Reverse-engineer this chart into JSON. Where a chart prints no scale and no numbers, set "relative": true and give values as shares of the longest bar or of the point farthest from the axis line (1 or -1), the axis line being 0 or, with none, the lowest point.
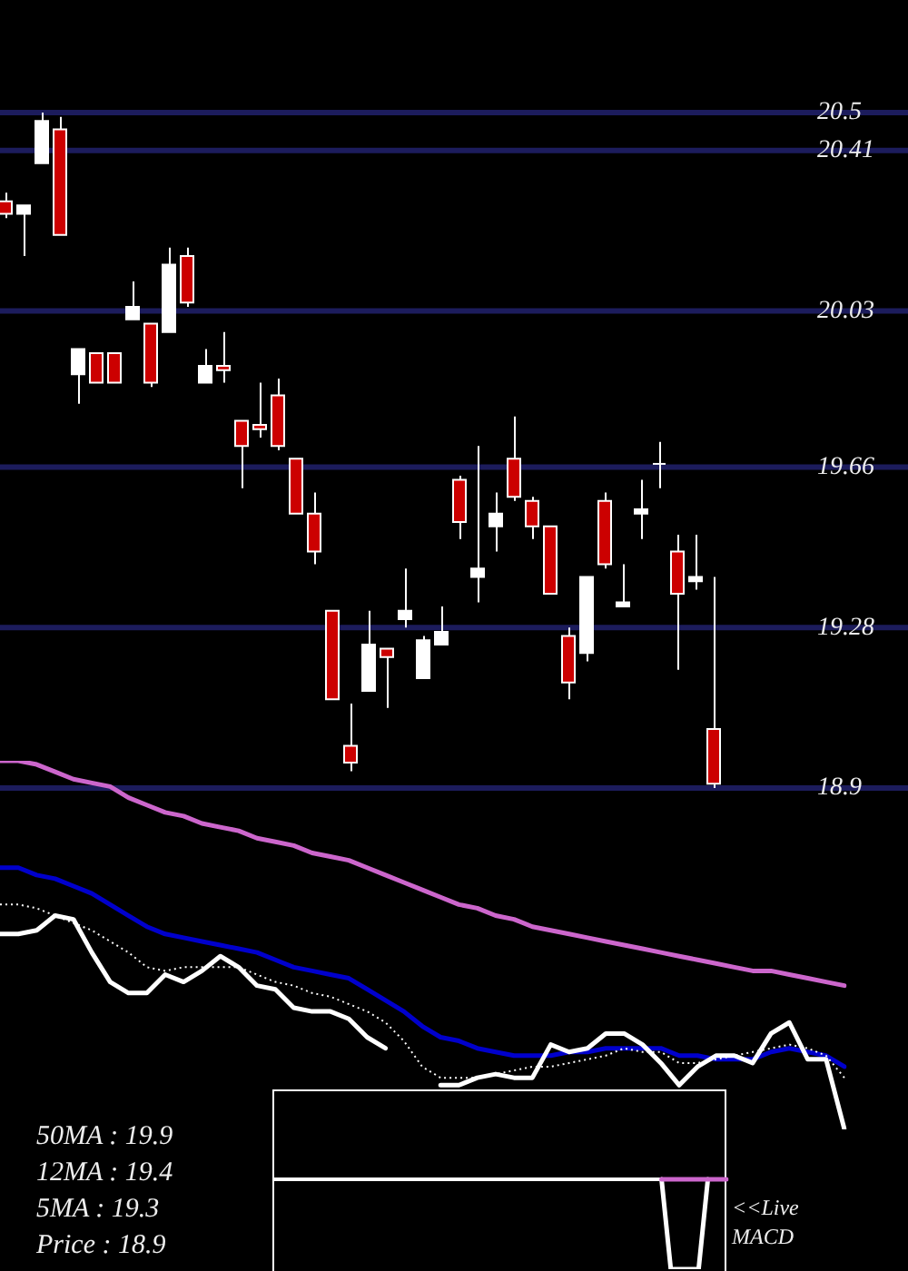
{
  "chart_data": [
    {
      "type": "candlestick",
      "categories": [
        null,
        null,
        null,
        null,
        null,
        null,
        null,
        null,
        null,
        null,
        null,
        null,
        null,
        null,
        null,
        null,
        null,
        null,
        null,
        null,
        null,
        null,
        null,
        null,
        null,
        null,
        null,
        null,
        null,
        null,
        null,
        null,
        null,
        null,
        null,
        null,
        null,
        null,
        null,
        null
      ],
      "ohlc": [
        [
          20.29,
          20.31,
          20.25,
          20.26
        ],
        [
          20.26,
          20.28,
          20.16,
          20.28
        ],
        [
          20.38,
          20.5,
          20.38,
          20.48
        ],
        [
          20.46,
          20.49,
          20.21,
          20.21
        ],
        [
          19.88,
          19.94,
          19.81,
          19.94
        ],
        [
          19.93,
          19.93,
          19.86,
          19.86
        ],
        [
          19.93,
          19.93,
          19.86,
          19.86
        ],
        [
          20.01,
          20.1,
          20.01,
          20.04
        ],
        [
          20.0,
          20.0,
          19.85,
          19.86
        ],
        [
          19.98,
          20.18,
          19.98,
          20.14
        ],
        [
          20.16,
          20.18,
          20.04,
          20.05
        ],
        [
          19.86,
          19.94,
          19.86,
          19.9
        ],
        [
          19.9,
          19.98,
          19.86,
          19.89
        ],
        [
          19.77,
          19.77,
          19.61,
          19.71
        ],
        [
          19.76,
          19.86,
          19.73,
          19.75
        ],
        [
          19.83,
          19.87,
          19.7,
          19.71
        ],
        [
          19.68,
          19.68,
          19.55,
          19.55
        ],
        [
          19.55,
          19.6,
          19.43,
          19.46
        ],
        [
          19.32,
          19.32,
          19.11,
          19.11
        ],
        [
          19.0,
          19.1,
          18.94,
          18.96
        ],
        [
          19.13,
          19.32,
          19.13,
          19.24
        ],
        [
          19.23,
          19.23,
          19.09,
          19.21
        ],
        [
          19.3,
          19.42,
          19.28,
          19.32
        ],
        [
          19.16,
          19.26,
          19.16,
          19.25
        ],
        [
          19.24,
          19.33,
          19.24,
          19.27
        ],
        [
          19.63,
          19.64,
          19.49,
          19.53
        ],
        [
          19.4,
          19.71,
          19.34,
          19.42
        ],
        [
          19.52,
          19.6,
          19.46,
          19.55
        ],
        [
          19.68,
          19.78,
          19.58,
          19.59
        ],
        [
          19.58,
          19.59,
          19.49,
          19.52
        ],
        [
          19.52,
          19.52,
          19.36,
          19.36
        ],
        [
          19.26,
          19.28,
          19.11,
          19.15
        ],
        [
          19.22,
          19.4,
          19.2,
          19.4
        ],
        [
          19.58,
          19.6,
          19.42,
          19.43
        ],
        [
          19.33,
          19.43,
          19.33,
          19.34
        ],
        [
          19.55,
          19.63,
          19.49,
          19.56
        ],
        [
          19.67,
          19.72,
          19.61,
          19.67
        ],
        [
          19.46,
          19.5,
          19.18,
          19.36
        ],
        [
          19.39,
          19.5,
          19.37,
          19.4
        ],
        [
          19.04,
          19.4,
          18.9,
          18.91
        ]
      ],
      "color": "#ffffff",
      "colors": [
        "#cc0000",
        "#ffffff",
        "#ffffff",
        "#cc0000",
        "#ffffff",
        "#cc0000",
        "#cc0000",
        "#ffffff",
        "#cc0000",
        "#ffffff",
        "#cc0000",
        "#ffffff",
        "#cc0000",
        "#cc0000",
        "#cc0000",
        "#cc0000",
        "#cc0000",
        "#cc0000",
        "#cc0000",
        "#cc0000",
        "#ffffff",
        "#cc0000",
        "#ffffff",
        "#ffffff",
        "#ffffff",
        "#cc0000",
        "#ffffff",
        "#ffffff",
        "#cc0000",
        "#cc0000",
        "#cc0000",
        "#cc0000",
        "#ffffff",
        "#cc0000",
        "#ffffff",
        "#ffffff",
        "#ffffff",
        "#cc0000",
        "#ffffff",
        "#cc0000"
      ],
      "ylim": [
        18.9,
        20.5
      ],
      "yticks": [
        18.9,
        19.28,
        19.66,
        20.03,
        20.41,
        20.5
      ],
      "grid": "y",
      "tick_labels": "y"
    },
    {
      "type": "line",
      "relative": true,
      "categories": [
        null,
        null,
        null,
        null,
        null,
        null,
        null,
        null,
        null,
        null,
        null,
        null,
        null,
        null,
        null,
        null,
        null,
        null,
        null,
        null,
        null,
        null,
        null,
        null,
        null,
        null,
        null,
        null,
        null,
        null,
        null,
        null,
        null,
        null,
        null,
        null,
        null,
        null,
        null,
        null,
        null,
        null,
        null,
        null,
        null,
        null,
        null
      ],
      "series": [
        {
          "color": "#cc66cc",
          "values": [
            1.0,
            1.0,
            0.99,
            0.97,
            0.95,
            0.94,
            0.93,
            0.9,
            0.88,
            0.86,
            0.85,
            0.83,
            0.82,
            0.81,
            0.79,
            0.78,
            0.77,
            0.75,
            0.74,
            0.73,
            0.71,
            0.69,
            0.67,
            0.65,
            0.63,
            0.61,
            0.6,
            0.58,
            0.57,
            0.55,
            0.54,
            0.53,
            0.52,
            0.51,
            0.5,
            0.49,
            0.48,
            0.47,
            0.46,
            0.45,
            0.44,
            0.43,
            0.43,
            0.42,
            0.41,
            0.4,
            0.39
          ]
        },
        {
          "color": "#0000cc",
          "values": [
            0.71,
            0.71,
            0.69,
            0.68,
            0.66,
            0.64,
            0.61,
            0.58,
            0.55,
            0.53,
            0.52,
            0.51,
            0.5,
            0.49,
            0.48,
            0.46,
            0.44,
            0.43,
            0.42,
            0.41,
            0.38,
            0.35,
            0.32,
            0.28,
            0.25,
            0.24,
            0.22,
            0.21,
            0.2,
            0.2,
            0.2,
            0.21,
            0.21,
            0.22,
            0.22,
            0.22,
            0.22,
            0.2,
            0.2,
            0.19,
            0.19,
            0.19,
            0.21,
            0.22,
            0.21,
            0.2,
            0.17
          ]
        },
        {
          "color": "#ffffff",
          "line_style": "dotted",
          "values": [
            0.61,
            0.61,
            0.6,
            0.58,
            0.56,
            0.54,
            0.51,
            0.48,
            0.44,
            0.43,
            0.44,
            0.44,
            0.44,
            0.44,
            0.42,
            0.4,
            0.39,
            0.37,
            0.36,
            0.34,
            0.32,
            0.29,
            0.24,
            0.17,
            0.14,
            0.14,
            0.14,
            0.15,
            0.16,
            0.17,
            0.17,
            0.18,
            0.19,
            0.2,
            0.22,
            0.21,
            0.21,
            0.18,
            0.18,
            0.19,
            0.2,
            0.21,
            0.22,
            0.23,
            0.22,
            0.2,
            0.14
          ]
        },
        {
          "color": "#ffffff",
          "values": [
            0.53,
            0.53,
            0.54,
            0.58,
            0.57,
            0.48,
            0.4,
            0.37,
            0.37,
            0.42,
            0.4,
            0.43,
            0.47,
            0.44,
            0.39,
            0.38,
            0.33,
            0.32,
            0.32,
            0.3,
            0.25,
            0.22,
            null,
            null,
            0.12,
            0.12,
            0.14,
            0.15,
            0.14,
            0.14,
            0.23,
            0.21,
            0.22,
            0.26,
            0.26,
            0.23,
            0.18,
            0.12,
            0.17,
            0.2,
            0.2,
            0.18,
            0.26,
            0.29,
            0.19,
            0.19,
            0.0
          ]
        }
      ],
      "annotations": [
        "50MA : 19.9",
        "12MA : 19.4",
        "5MA : 19.3",
        "Price : 18.9"
      ]
    },
    {
      "type": "line",
      "relative": true,
      "categories": [
        null,
        null,
        null,
        null,
        null,
        null,
        null,
        null,
        null,
        null,
        null,
        null,
        null,
        null,
        null,
        null,
        null,
        null,
        null,
        null,
        null,
        null,
        null,
        null,
        null,
        null,
        null,
        null,
        null,
        null,
        null,
        null,
        null,
        null,
        null,
        null,
        null,
        null,
        null,
        null,
        null,
        null,
        null,
        null,
        null,
        null,
        null,
        null,
        null,
        null
      ],
      "series": [
        {
          "color": "#ffffff",
          "values": [
            null,
            null,
            null,
            null,
            null,
            null,
            null,
            null,
            null,
            null,
            null,
            null,
            null,
            null,
            null,
            null,
            null,
            null,
            null,
            null,
            null,
            null,
            null,
            null,
            null,
            null,
            null,
            null,
            null,
            null,
            null,
            null,
            null,
            null,
            null,
            null,
            null,
            null,
            null,
            null,
            null,
            null,
            0,
            -1,
            -1,
            -1,
            -1,
            0,
            null,
            null
          ]
        },
        {
          "color": "#cc66cc",
          "values": [
            null,
            null,
            null,
            null,
            null,
            null,
            null,
            null,
            null,
            null,
            null,
            null,
            null,
            null,
            null,
            null,
            null,
            null,
            null,
            null,
            null,
            null,
            null,
            null,
            null,
            null,
            null,
            null,
            null,
            null,
            null,
            null,
            null,
            null,
            null,
            null,
            null,
            null,
            null,
            null,
            null,
            null,
            0,
            0,
            0,
            0,
            0,
            0,
            0,
            0
          ]
        }
      ],
      "ref_lines": [
        {
          "axis": "y",
          "value": 0,
          "color": "#ffffff"
        }
      ],
      "annotations": [
        "<<Live MACD"
      ]
    }
  ]
}
